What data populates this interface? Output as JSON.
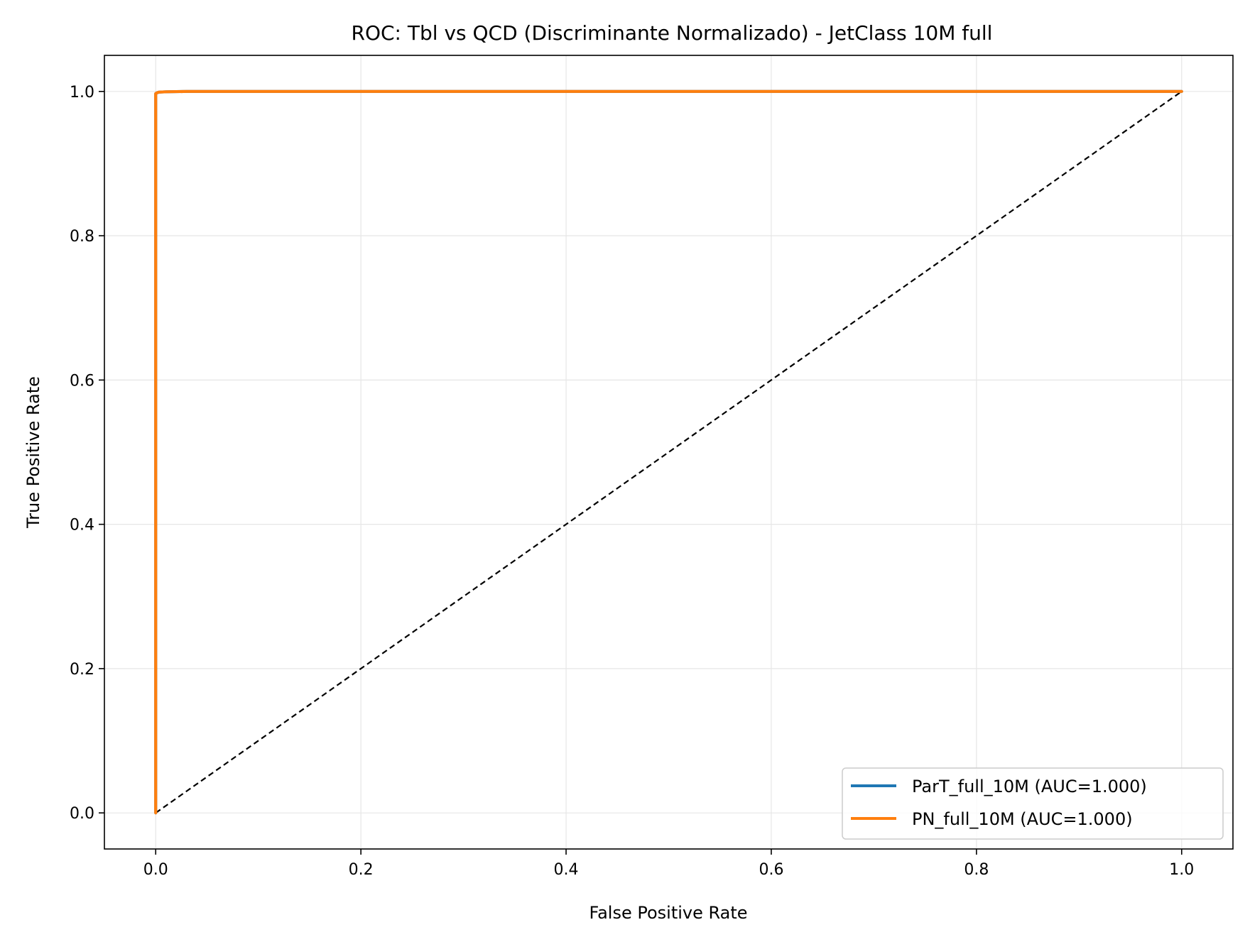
{
  "chart_data": {
    "type": "line",
    "title": "ROC: Tbl vs QCD (Discriminante Normalizado) - JetClass 10M full",
    "xlabel": "False Positive Rate",
    "ylabel": "True Positive Rate",
    "xlim": [
      -0.05,
      1.05
    ],
    "ylim": [
      -0.05,
      1.05
    ],
    "xticks": [
      0.0,
      0.2,
      0.4,
      0.6,
      0.8,
      1.0
    ],
    "yticks": [
      0.0,
      0.2,
      0.4,
      0.6,
      0.8,
      1.0
    ],
    "xtick_labels": [
      "0.0",
      "0.2",
      "0.4",
      "0.6",
      "0.8",
      "1.0"
    ],
    "ytick_labels": [
      "0.0",
      "0.2",
      "0.4",
      "0.6",
      "0.8",
      "1.0"
    ],
    "grid": true,
    "legend_position": "lower-right",
    "series": [
      {
        "name": "ParT_full_10M (AUC=1.000)",
        "color": "#1f77b4",
        "x": [
          0.0,
          0.0,
          0.001,
          0.003,
          0.01,
          0.03,
          0.1,
          0.3,
          0.6,
          1.0
        ],
        "y": [
          0.0,
          0.997,
          0.998,
          0.999,
          0.9995,
          1.0,
          1.0,
          1.0,
          1.0,
          1.0
        ]
      },
      {
        "name": "PN_full_10M (AUC=1.000)",
        "color": "#ff7f0e",
        "x": [
          0.0,
          0.0,
          0.001,
          0.003,
          0.01,
          0.03,
          0.1,
          0.3,
          0.6,
          1.0
        ],
        "y": [
          0.0,
          0.997,
          0.998,
          0.999,
          0.9995,
          1.0,
          1.0,
          1.0,
          1.0,
          1.0
        ]
      }
    ],
    "reference_line": {
      "x": [
        0.0,
        1.0
      ],
      "y": [
        0.0,
        1.0
      ],
      "color": "#000000",
      "style": "dashed"
    }
  }
}
